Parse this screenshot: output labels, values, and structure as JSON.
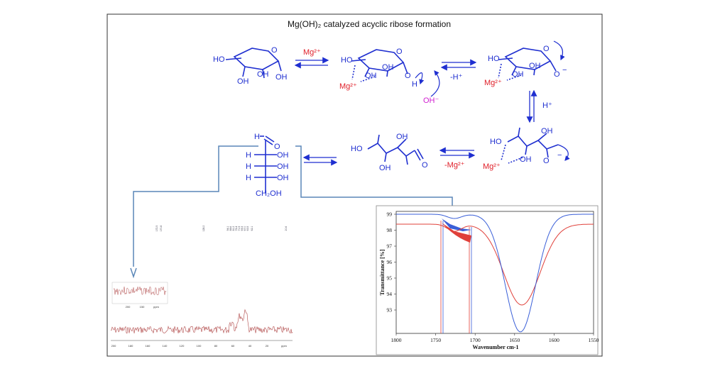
{
  "title": "Mg(OH)₂ catalyzed acyclic ribose formation",
  "colors": {
    "structure": "#1f2fd0",
    "magnesium": "#e0202a",
    "hydroxide": "#d020d0",
    "ir_blue": "#3a5fd8",
    "ir_red": "#e0403a",
    "connector": "#5a86b8",
    "nmr": "#b04848"
  },
  "labels": {
    "mg2plus": "Mg²⁺",
    "minus_mg2plus": "-Mg²⁺",
    "minus_hplus": "-H⁺",
    "hplus": "H⁺",
    "oh_minus": "OH⁻",
    "oh": "OH",
    "ho": "HO",
    "o": "O",
    "h": "H",
    "ch2oh": "CH₂OH",
    "minus": "−"
  },
  "ir_chart": {
    "xlabel": "Wavenumber cm-1",
    "ylabel": "Transmittance [%]",
    "x_ticks": [
      "1800",
      "1750",
      "1700",
      "1650",
      "1600",
      "1550"
    ],
    "y_ticks": [
      "99",
      "98",
      "97",
      "96",
      "95",
      "94",
      "93"
    ]
  },
  "nmr_chart": {
    "x_ticks": [
      "200",
      "180",
      "160",
      "140",
      "120",
      "100",
      "80",
      "60",
      "40",
      "20",
      "ppm"
    ],
    "inset_ticks": [
      "200",
      "150",
      "ppm"
    ],
    "peak_labels": [
      "172.5",
      "170.8",
      "128.2",
      "94.1",
      "88.6",
      "81.2",
      "76.4",
      "71.9",
      "69.3",
      "67.0",
      "63.5",
      "62.1",
      "20.6"
    ]
  }
}
